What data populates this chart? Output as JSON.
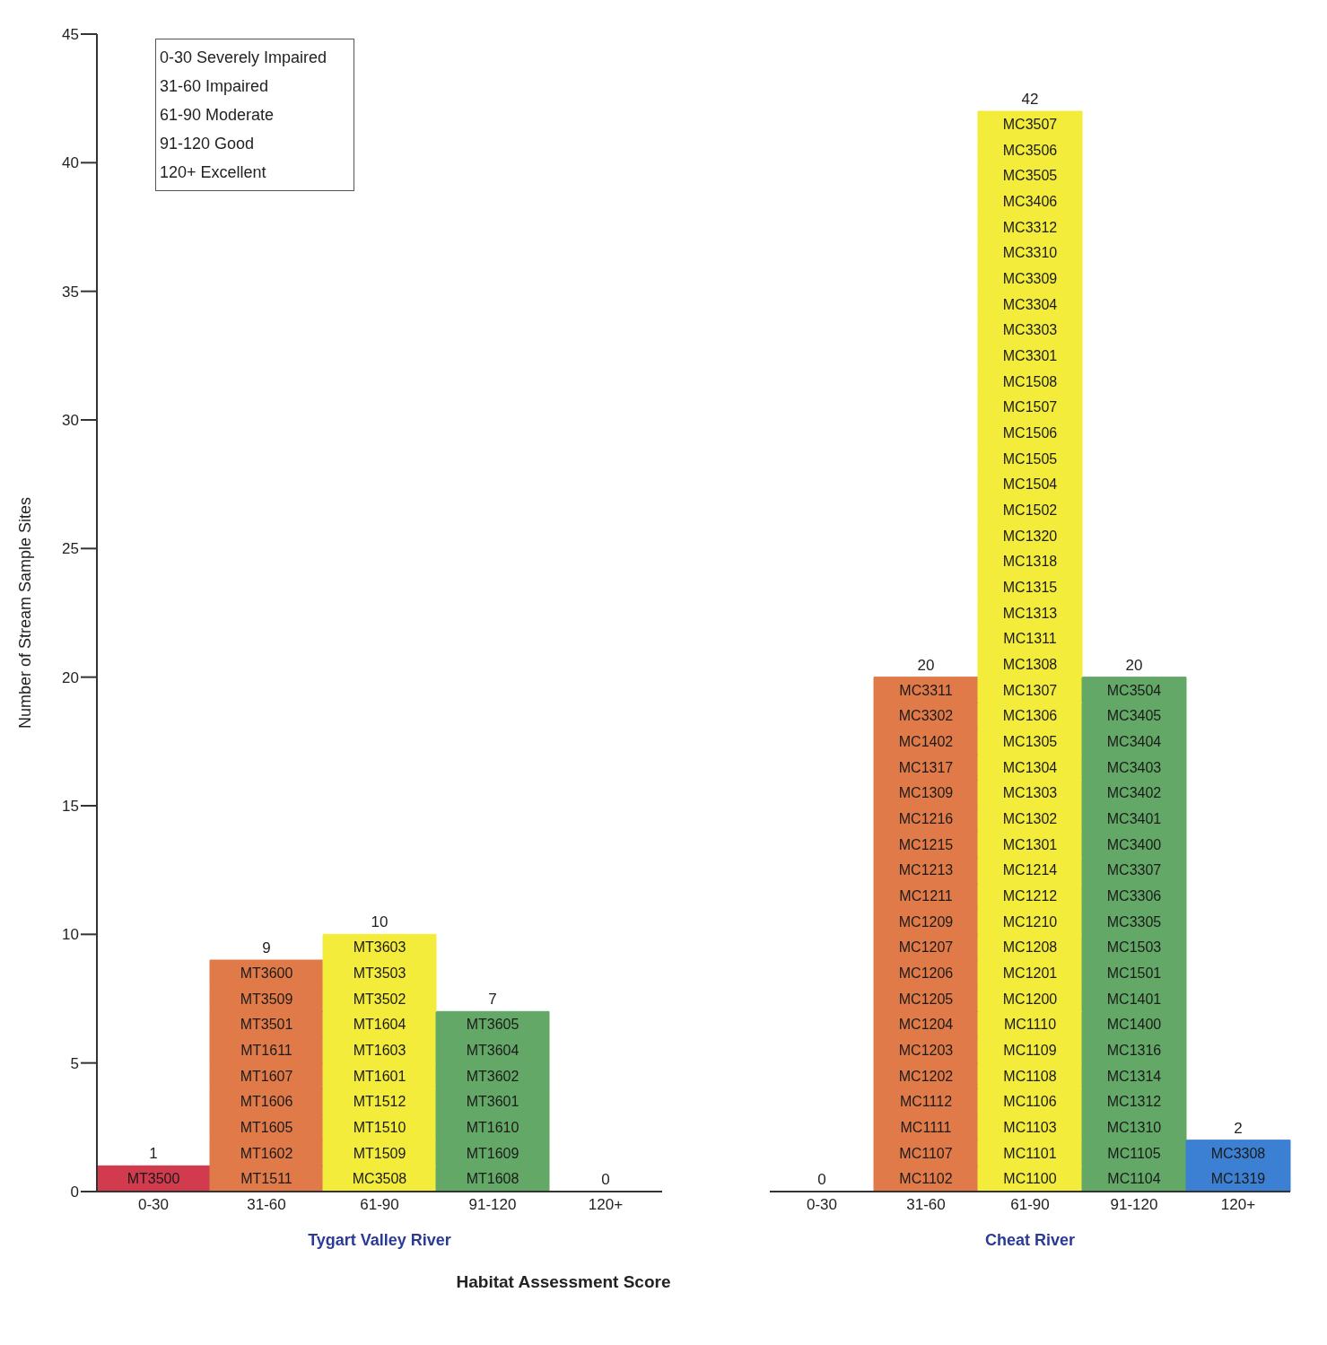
{
  "chart_data": [
    {
      "type": "bar",
      "stacked": true,
      "xlabel": "Tygart Valley River",
      "ylabel": "Number of Stream Sample Sites",
      "categories": [
        "0-30",
        "31-60",
        "61-90",
        "91-120",
        "120+"
      ],
      "ylim": [
        0,
        45
      ],
      "yticks": [
        0,
        5,
        10,
        15,
        20,
        25,
        30,
        35,
        40,
        45
      ],
      "totals": [
        "1",
        "9",
        "10",
        "7",
        "0"
      ],
      "annotations": [
        "0-30 Severely Impaired",
        "31-60 Impaired",
        "61-90 Moderate",
        "91-120 Good",
        "120+ Excellent"
      ],
      "series": [
        {
          "values": [
            1,
            1,
            1,
            1,
            null
          ],
          "colors": [
            "#d23a4e",
            "#e07a48",
            "#f4ec3a",
            "#63a867",
            "#3b80d2"
          ],
          "value_labels": [
            "MT3500",
            "MT1511",
            "MC3508",
            "MT1608",
            null
          ]
        },
        {
          "values": [
            null,
            1,
            1,
            1,
            null
          ],
          "colors": [
            "#d23a4e",
            "#e07a48",
            "#f4ec3a",
            "#63a867",
            "#3b80d2"
          ],
          "value_labels": [
            null,
            "MT1602",
            "MT1509",
            "MT1609",
            null
          ]
        },
        {
          "values": [
            null,
            1,
            1,
            1,
            null
          ],
          "colors": [
            "#d23a4e",
            "#e07a48",
            "#f4ec3a",
            "#63a867",
            "#3b80d2"
          ],
          "value_labels": [
            null,
            "MT1605",
            "MT1510",
            "MT1610",
            null
          ]
        },
        {
          "values": [
            null,
            1,
            1,
            1,
            null
          ],
          "colors": [
            "#d23a4e",
            "#e07a48",
            "#f4ec3a",
            "#63a867",
            "#3b80d2"
          ],
          "value_labels": [
            null,
            "MT1606",
            "MT1512",
            "MT3601",
            null
          ]
        },
        {
          "values": [
            null,
            1,
            1,
            1,
            null
          ],
          "colors": [
            "#d23a4e",
            "#e07a48",
            "#f4ec3a",
            "#63a867",
            "#3b80d2"
          ],
          "value_labels": [
            null,
            "MT1607",
            "MT1601",
            "MT3602",
            null
          ]
        },
        {
          "values": [
            null,
            1,
            1,
            1,
            null
          ],
          "colors": [
            "#d23a4e",
            "#e07a48",
            "#f4ec3a",
            "#63a867",
            "#3b80d2"
          ],
          "value_labels": [
            null,
            "MT1611",
            "MT1603",
            "MT3604",
            null
          ]
        },
        {
          "values": [
            null,
            1,
            1,
            1,
            null
          ],
          "colors": [
            "#d23a4e",
            "#e07a48",
            "#f4ec3a",
            "#63a867",
            "#3b80d2"
          ],
          "value_labels": [
            null,
            "MT3501",
            "MT1604",
            "MT3605",
            null
          ]
        },
        {
          "values": [
            null,
            1,
            1,
            null,
            null
          ],
          "colors": [
            "#d23a4e",
            "#e07a48",
            "#f4ec3a",
            "#63a867",
            "#3b80d2"
          ],
          "value_labels": [
            null,
            "MT3509",
            "MT3502",
            null,
            null
          ]
        },
        {
          "values": [
            null,
            1,
            1,
            null,
            null
          ],
          "colors": [
            "#d23a4e",
            "#e07a48",
            "#f4ec3a",
            "#63a867",
            "#3b80d2"
          ],
          "value_labels": [
            null,
            "MT3600",
            "MT3503",
            null,
            null
          ]
        },
        {
          "values": [
            null,
            null,
            1,
            null,
            null
          ],
          "color": "#f4ec3a",
          "value_labels": [
            null,
            null,
            "MT3603",
            null,
            null
          ]
        }
      ]
    },
    {
      "type": "bar",
      "stacked": true,
      "xlabel": "Cheat River",
      "categories": [
        "0-30",
        "31-60",
        "61-90",
        "91-120",
        "120+"
      ],
      "ylim": [
        0,
        45
      ],
      "tick_labels": "x",
      "totals": [
        "0",
        "20",
        "42",
        "20",
        "2"
      ],
      "annotations": [
        "Habitat Assessment Score"
      ],
      "series": [
        {
          "values": [
            null,
            1,
            1,
            1,
            1
          ],
          "colors": [
            "#d23a4e",
            "#e07a48",
            "#f4ec3a",
            "#63a867",
            "#3b80d2"
          ],
          "value_labels": [
            null,
            "MC1102",
            "MC1100",
            "MC1104",
            "MC1319"
          ]
        },
        {
          "values": [
            null,
            1,
            1,
            1,
            1
          ],
          "colors": [
            "#d23a4e",
            "#e07a48",
            "#f4ec3a",
            "#63a867",
            "#3b80d2"
          ],
          "value_labels": [
            null,
            "MC1107",
            "MC1101",
            "MC1105",
            "MC3308"
          ]
        },
        {
          "values": [
            null,
            1,
            1,
            1,
            null
          ],
          "colors": [
            "#d23a4e",
            "#e07a48",
            "#f4ec3a",
            "#63a867",
            "#3b80d2"
          ],
          "value_labels": [
            null,
            "MC1111",
            "MC1103",
            "MC1310",
            null
          ]
        },
        {
          "values": [
            null,
            1,
            1,
            1,
            null
          ],
          "colors": [
            "#d23a4e",
            "#e07a48",
            "#f4ec3a",
            "#63a867",
            "#3b80d2"
          ],
          "value_labels": [
            null,
            "MC1112",
            "MC1106",
            "MC1312",
            null
          ]
        },
        {
          "values": [
            null,
            1,
            1,
            1,
            null
          ],
          "colors": [
            "#d23a4e",
            "#e07a48",
            "#f4ec3a",
            "#63a867",
            "#3b80d2"
          ],
          "value_labels": [
            null,
            "MC1202",
            "MC1108",
            "MC1314",
            null
          ]
        },
        {
          "values": [
            null,
            1,
            1,
            1,
            null
          ],
          "colors": [
            "#d23a4e",
            "#e07a48",
            "#f4ec3a",
            "#63a867",
            "#3b80d2"
          ],
          "value_labels": [
            null,
            "MC1203",
            "MC1109",
            "MC1316",
            null
          ]
        },
        {
          "values": [
            null,
            1,
            1,
            1,
            null
          ],
          "colors": [
            "#d23a4e",
            "#e07a48",
            "#f4ec3a",
            "#63a867",
            "#3b80d2"
          ],
          "value_labels": [
            null,
            "MC1204",
            "MC1110",
            "MC1400",
            null
          ]
        },
        {
          "values": [
            null,
            1,
            1,
            1,
            null
          ],
          "colors": [
            "#d23a4e",
            "#e07a48",
            "#f4ec3a",
            "#63a867",
            "#3b80d2"
          ],
          "value_labels": [
            null,
            "MC1205",
            "MC1200",
            "MC1401",
            null
          ]
        },
        {
          "values": [
            null,
            1,
            1,
            1,
            null
          ],
          "colors": [
            "#d23a4e",
            "#e07a48",
            "#f4ec3a",
            "#63a867",
            "#3b80d2"
          ],
          "value_labels": [
            null,
            "MC1206",
            "MC1201",
            "MC1501",
            null
          ]
        },
        {
          "values": [
            null,
            1,
            1,
            1,
            null
          ],
          "colors": [
            "#d23a4e",
            "#e07a48",
            "#f4ec3a",
            "#63a867",
            "#3b80d2"
          ],
          "value_labels": [
            null,
            "MC1207",
            "MC1208",
            "MC1503",
            null
          ]
        },
        {
          "values": [
            null,
            1,
            1,
            1,
            null
          ],
          "colors": [
            "#d23a4e",
            "#e07a48",
            "#f4ec3a",
            "#63a867",
            "#3b80d2"
          ],
          "value_labels": [
            null,
            "MC1209",
            "MC1210",
            "MC3305",
            null
          ]
        },
        {
          "values": [
            null,
            1,
            1,
            1,
            null
          ],
          "colors": [
            "#d23a4e",
            "#e07a48",
            "#f4ec3a",
            "#63a867",
            "#3b80d2"
          ],
          "value_labels": [
            null,
            "MC1211",
            "MC1212",
            "MC3306",
            null
          ]
        },
        {
          "values": [
            null,
            1,
            1,
            1,
            null
          ],
          "colors": [
            "#d23a4e",
            "#e07a48",
            "#f4ec3a",
            "#63a867",
            "#3b80d2"
          ],
          "value_labels": [
            null,
            "MC1213",
            "MC1214",
            "MC3307",
            null
          ]
        },
        {
          "values": [
            null,
            1,
            1,
            1,
            null
          ],
          "colors": [
            "#d23a4e",
            "#e07a48",
            "#f4ec3a",
            "#63a867",
            "#3b80d2"
          ],
          "value_labels": [
            null,
            "MC1215",
            "MC1301",
            "MC3400",
            null
          ]
        },
        {
          "values": [
            null,
            1,
            1,
            1,
            null
          ],
          "colors": [
            "#d23a4e",
            "#e07a48",
            "#f4ec3a",
            "#63a867",
            "#3b80d2"
          ],
          "value_labels": [
            null,
            "MC1216",
            "MC1302",
            "MC3401",
            null
          ]
        },
        {
          "values": [
            null,
            1,
            1,
            1,
            null
          ],
          "colors": [
            "#d23a4e",
            "#e07a48",
            "#f4ec3a",
            "#63a867",
            "#3b80d2"
          ],
          "value_labels": [
            null,
            "MC1309",
            "MC1303",
            "MC3402",
            null
          ]
        },
        {
          "values": [
            null,
            1,
            1,
            1,
            null
          ],
          "colors": [
            "#d23a4e",
            "#e07a48",
            "#f4ec3a",
            "#63a867",
            "#3b80d2"
          ],
          "value_labels": [
            null,
            "MC1317",
            "MC1304",
            "MC3403",
            null
          ]
        },
        {
          "values": [
            null,
            1,
            1,
            1,
            null
          ],
          "colors": [
            "#d23a4e",
            "#e07a48",
            "#f4ec3a",
            "#63a867",
            "#3b80d2"
          ],
          "value_labels": [
            null,
            "MC1402",
            "MC1305",
            "MC3404",
            null
          ]
        },
        {
          "values": [
            null,
            1,
            1,
            1,
            null
          ],
          "colors": [
            "#d23a4e",
            "#e07a48",
            "#f4ec3a",
            "#63a867",
            "#3b80d2"
          ],
          "value_labels": [
            null,
            "MC3302",
            "MC1306",
            "MC3405",
            null
          ]
        },
        {
          "values": [
            null,
            1,
            1,
            1,
            null
          ],
          "colors": [
            "#d23a4e",
            "#e07a48",
            "#f4ec3a",
            "#63a867",
            "#3b80d2"
          ],
          "value_labels": [
            null,
            "MC3311",
            "MC1307",
            "MC3504",
            null
          ]
        },
        {
          "values": [
            null,
            null,
            1,
            null,
            null
          ],
          "color": "#f4ec3a",
          "value_labels": [
            null,
            null,
            "MC1308",
            null,
            null
          ]
        },
        {
          "values": [
            null,
            null,
            1,
            null,
            null
          ],
          "color": "#f4ec3a",
          "value_labels": [
            null,
            null,
            "MC1311",
            null,
            null
          ]
        },
        {
          "values": [
            null,
            null,
            1,
            null,
            null
          ],
          "color": "#f4ec3a",
          "value_labels": [
            null,
            null,
            "MC1313",
            null,
            null
          ]
        },
        {
          "values": [
            null,
            null,
            1,
            null,
            null
          ],
          "color": "#f4ec3a",
          "value_labels": [
            null,
            null,
            "MC1315",
            null,
            null
          ]
        },
        {
          "values": [
            null,
            null,
            1,
            null,
            null
          ],
          "color": "#f4ec3a",
          "value_labels": [
            null,
            null,
            "MC1318",
            null,
            null
          ]
        },
        {
          "values": [
            null,
            null,
            1,
            null,
            null
          ],
          "color": "#f4ec3a",
          "value_labels": [
            null,
            null,
            "MC1320",
            null,
            null
          ]
        },
        {
          "values": [
            null,
            null,
            1,
            null,
            null
          ],
          "color": "#f4ec3a",
          "value_labels": [
            null,
            null,
            "MC1502",
            null,
            null
          ]
        },
        {
          "values": [
            null,
            null,
            1,
            null,
            null
          ],
          "color": "#f4ec3a",
          "value_labels": [
            null,
            null,
            "MC1504",
            null,
            null
          ]
        },
        {
          "values": [
            null,
            null,
            1,
            null,
            null
          ],
          "color": "#f4ec3a",
          "value_labels": [
            null,
            null,
            "MC1505",
            null,
            null
          ]
        },
        {
          "values": [
            null,
            null,
            1,
            null,
            null
          ],
          "color": "#f4ec3a",
          "value_labels": [
            null,
            null,
            "MC1506",
            null,
            null
          ]
        },
        {
          "values": [
            null,
            null,
            1,
            null,
            null
          ],
          "color": "#f4ec3a",
          "value_labels": [
            null,
            null,
            "MC1507",
            null,
            null
          ]
        },
        {
          "values": [
            null,
            null,
            1,
            null,
            null
          ],
          "color": "#f4ec3a",
          "value_labels": [
            null,
            null,
            "MC1508",
            null,
            null
          ]
        },
        {
          "values": [
            null,
            null,
            1,
            null,
            null
          ],
          "color": "#f4ec3a",
          "value_labels": [
            null,
            null,
            "MC3301",
            null,
            null
          ]
        },
        {
          "values": [
            null,
            null,
            1,
            null,
            null
          ],
          "color": "#f4ec3a",
          "value_labels": [
            null,
            null,
            "MC3303",
            null,
            null
          ]
        },
        {
          "values": [
            null,
            null,
            1,
            null,
            null
          ],
          "color": "#f4ec3a",
          "value_labels": [
            null,
            null,
            "MC3304",
            null,
            null
          ]
        },
        {
          "values": [
            null,
            null,
            1,
            null,
            null
          ],
          "color": "#f4ec3a",
          "value_labels": [
            null,
            null,
            "MC3309",
            null,
            null
          ]
        },
        {
          "values": [
            null,
            null,
            1,
            null,
            null
          ],
          "color": "#f4ec3a",
          "value_labels": [
            null,
            null,
            "MC3310",
            null,
            null
          ]
        },
        {
          "values": [
            null,
            null,
            1,
            null,
            null
          ],
          "color": "#f4ec3a",
          "value_labels": [
            null,
            null,
            "MC3312",
            null,
            null
          ]
        },
        {
          "values": [
            null,
            null,
            1,
            null,
            null
          ],
          "color": "#f4ec3a",
          "value_labels": [
            null,
            null,
            "MC3406",
            null,
            null
          ]
        },
        {
          "values": [
            null,
            null,
            1,
            null,
            null
          ],
          "color": "#f4ec3a",
          "value_labels": [
            null,
            null,
            "MC3505",
            null,
            null
          ]
        },
        {
          "values": [
            null,
            null,
            1,
            null,
            null
          ],
          "color": "#f4ec3a",
          "value_labels": [
            null,
            null,
            "MC3506",
            null,
            null
          ]
        },
        {
          "values": [
            null,
            null,
            1,
            null,
            null
          ],
          "color": "#f4ec3a",
          "value_labels": [
            null,
            null,
            "MC3507",
            null,
            null
          ]
        }
      ]
    }
  ]
}
